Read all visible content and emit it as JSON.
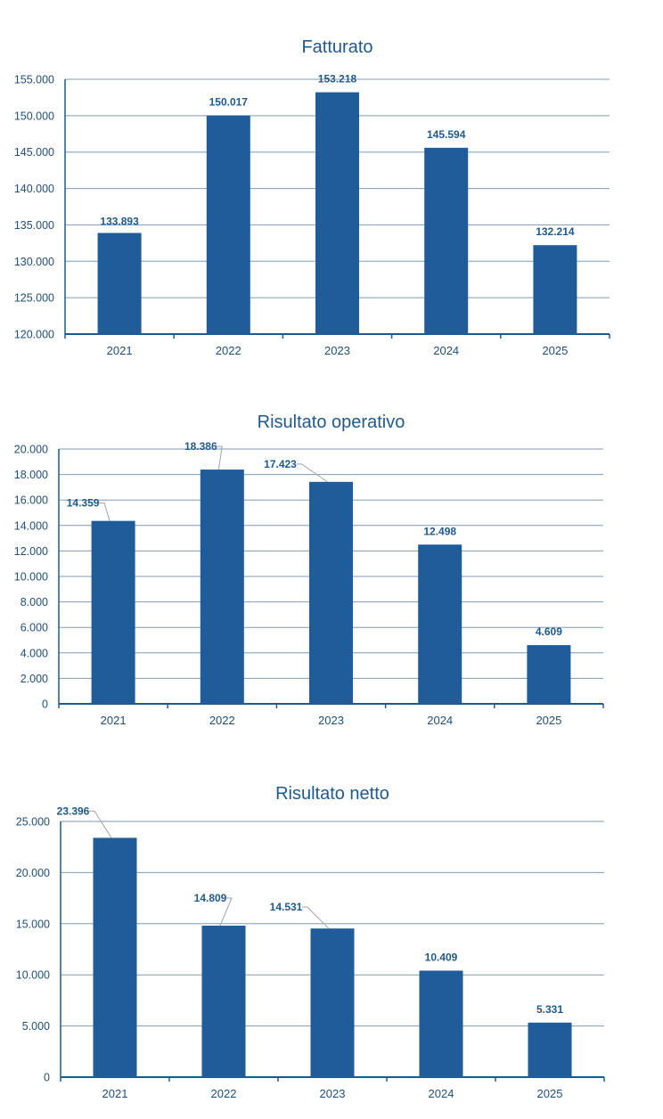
{
  "chart_data": [
    {
      "type": "bar",
      "title": "Fatturato",
      "categories": [
        "2021",
        "2022",
        "2023",
        "2024",
        "2025"
      ],
      "values": [
        133893,
        150017,
        153218,
        145594,
        132214
      ],
      "value_labels": [
        "133.893",
        "150.017",
        "153.218",
        "145.594",
        "132.214"
      ],
      "ylim": [
        120000,
        155000
      ],
      "yticks": [
        120000,
        125000,
        130000,
        135000,
        140000,
        145000,
        150000,
        155000
      ],
      "ytick_labels": [
        "120.000",
        "125.000",
        "130.000",
        "135.000",
        "140.000",
        "145.000",
        "150.000",
        "155.000"
      ],
      "grid": true,
      "legend": "none",
      "bar_color": "#1f5c99"
    },
    {
      "type": "bar",
      "title": "Risultato operativo",
      "categories": [
        "2021",
        "2022",
        "2023",
        "2024",
        "2025"
      ],
      "values": [
        14359,
        18386,
        17423,
        12498,
        4609
      ],
      "value_labels": [
        "14.359",
        "18.386",
        "17.423",
        "12.498",
        "4.609"
      ],
      "ylim": [
        0,
        20000
      ],
      "yticks": [
        0,
        2000,
        4000,
        6000,
        8000,
        10000,
        12000,
        14000,
        16000,
        18000,
        20000
      ],
      "ytick_labels": [
        "0",
        "2.000",
        "4.000",
        "6.000",
        "8.000",
        "10.000",
        "12.000",
        "14.000",
        "16.000",
        "18.000",
        "20.000"
      ],
      "grid": true,
      "legend": "none",
      "bar_color": "#1f5c99"
    },
    {
      "type": "bar",
      "title": "Risultato netto",
      "categories": [
        "2021",
        "2022",
        "2023",
        "2024",
        "2025"
      ],
      "values": [
        23396,
        14809,
        14531,
        10409,
        5331
      ],
      "value_labels": [
        "23.396",
        "14.809",
        "14.531",
        "10.409",
        "5.331"
      ],
      "ylim": [
        0,
        25000
      ],
      "yticks": [
        0,
        5000,
        10000,
        15000,
        20000,
        25000
      ],
      "ytick_labels": [
        "0",
        "5.000",
        "10.000",
        "15.000",
        "20.000",
        "25.000"
      ],
      "grid": true,
      "legend": "none",
      "bar_color": "#1f5c99"
    }
  ]
}
